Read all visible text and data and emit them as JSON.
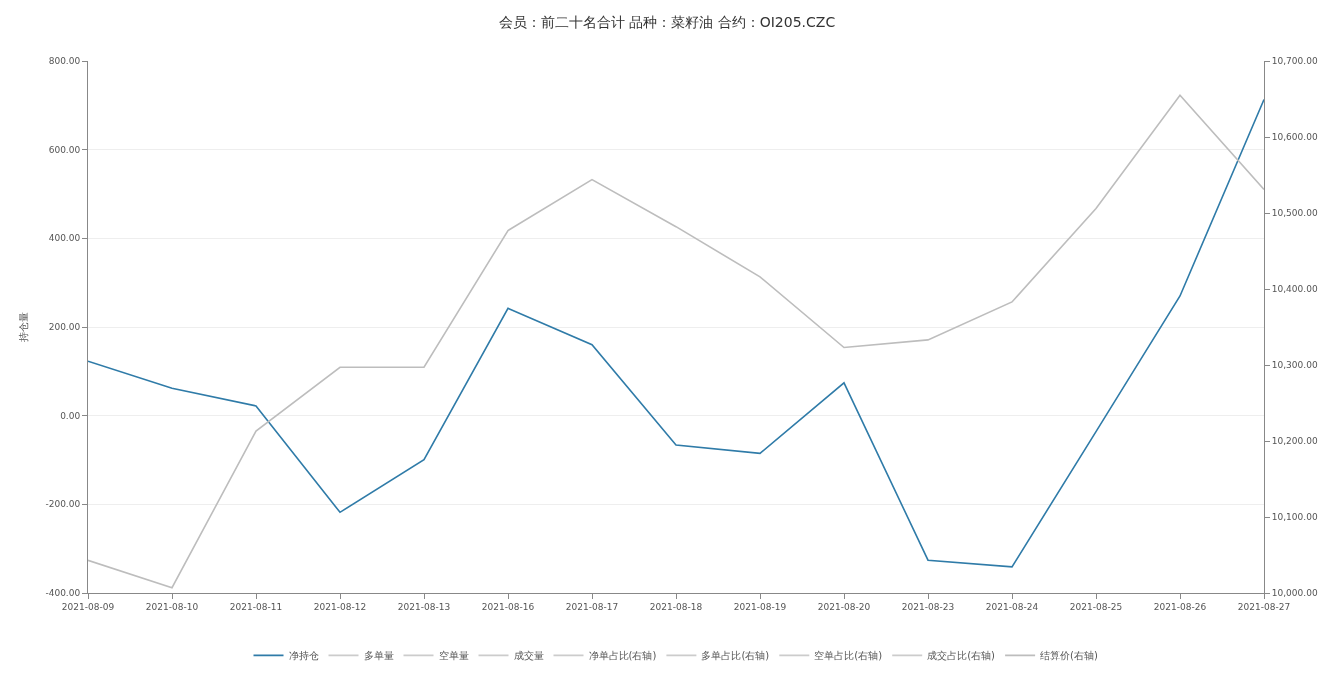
{
  "chart_data": {
    "type": "line",
    "title": "会员：前二十名合计 品种：菜籽油 合约：OI205.CZC",
    "ylabel": "持仓量",
    "categories": [
      "2021-08-09",
      "2021-08-10",
      "2021-08-11",
      "2021-08-12",
      "2021-08-13",
      "2021-08-16",
      "2021-08-17",
      "2021-08-18",
      "2021-08-19",
      "2021-08-20",
      "2021-08-23",
      "2021-08-24",
      "2021-08-25",
      "2021-08-26",
      "2021-08-27"
    ],
    "series": [
      {
        "name": "净持仓",
        "color": "#2f7ba8",
        "values": [
          123,
          62,
          22,
          -218,
          -99,
          242,
          160,
          -66,
          -85,
          74,
          -326,
          -341,
          -36,
          270,
          713
        ]
      },
      {
        "name": "多单量",
        "color": "#cccccc",
        "values": [
          null,
          null,
          null,
          null,
          null,
          null,
          null,
          null,
          null,
          null,
          null,
          null,
          null,
          null,
          null
        ]
      },
      {
        "name": "空单量",
        "color": "#cccccc",
        "values": [
          null,
          null,
          null,
          null,
          null,
          null,
          null,
          null,
          null,
          null,
          null,
          null,
          null,
          null,
          null
        ]
      },
      {
        "name": "成交量",
        "color": "#cccccc",
        "values": [
          null,
          null,
          null,
          null,
          null,
          null,
          null,
          null,
          null,
          null,
          null,
          null,
          null,
          null,
          null
        ]
      },
      {
        "name": "净单占比(右轴)",
        "color": "#cccccc",
        "axis": "y2",
        "values": [
          null,
          null,
          null,
          null,
          null,
          null,
          null,
          null,
          null,
          null,
          null,
          null,
          null,
          null,
          null
        ]
      },
      {
        "name": "多单占比(右轴)",
        "color": "#cccccc",
        "axis": "y2",
        "values": [
          null,
          null,
          null,
          null,
          null,
          null,
          null,
          null,
          null,
          null,
          null,
          null,
          null,
          null,
          null
        ]
      },
      {
        "name": "空单占比(右轴)",
        "color": "#cccccc",
        "axis": "y2",
        "values": [
          null,
          null,
          null,
          null,
          null,
          null,
          null,
          null,
          null,
          null,
          null,
          null,
          null,
          null,
          null
        ]
      },
      {
        "name": "成交占比(右轴)",
        "color": "#cccccc",
        "axis": "y2",
        "values": [
          null,
          null,
          null,
          null,
          null,
          null,
          null,
          null,
          null,
          null,
          null,
          null,
          null,
          null,
          null
        ]
      },
      {
        "name": "结算价(右轴)",
        "color": "#bdbdbd",
        "axis": "y2",
        "values": [
          10043,
          10007,
          10213,
          10297,
          10297,
          10477,
          10544,
          10482,
          10416,
          10323,
          10333,
          10383,
          10506,
          10655,
          10531
        ]
      }
    ],
    "ylim": [
      -400,
      800
    ],
    "yticks": [
      {
        "value": -400,
        "label": "-400.00"
      },
      {
        "value": -200,
        "label": "-200.00"
      },
      {
        "value": 0,
        "label": "0.00"
      },
      {
        "value": 200,
        "label": "200.00"
      },
      {
        "value": 400,
        "label": "400.00"
      },
      {
        "value": 600,
        "label": "600.00"
      },
      {
        "value": 800,
        "label": "800.00"
      }
    ],
    "y2lim": [
      10000,
      10700
    ],
    "y2ticks": [
      {
        "value": 10000,
        "label": "10,000.00"
      },
      {
        "value": 10100,
        "label": "10,100.00"
      },
      {
        "value": 10200,
        "label": "10,200.00"
      },
      {
        "value": 10300,
        "label": "10,300.00"
      },
      {
        "value": 10400,
        "label": "10,400.00"
      },
      {
        "value": 10500,
        "label": "10,500.00"
      },
      {
        "value": 10600,
        "label": "10,600.00"
      },
      {
        "value": 10700,
        "label": "10,700.00"
      }
    ],
    "grid": "y",
    "legend": "bottom",
    "marker": "none",
    "line_style": "solid"
  }
}
